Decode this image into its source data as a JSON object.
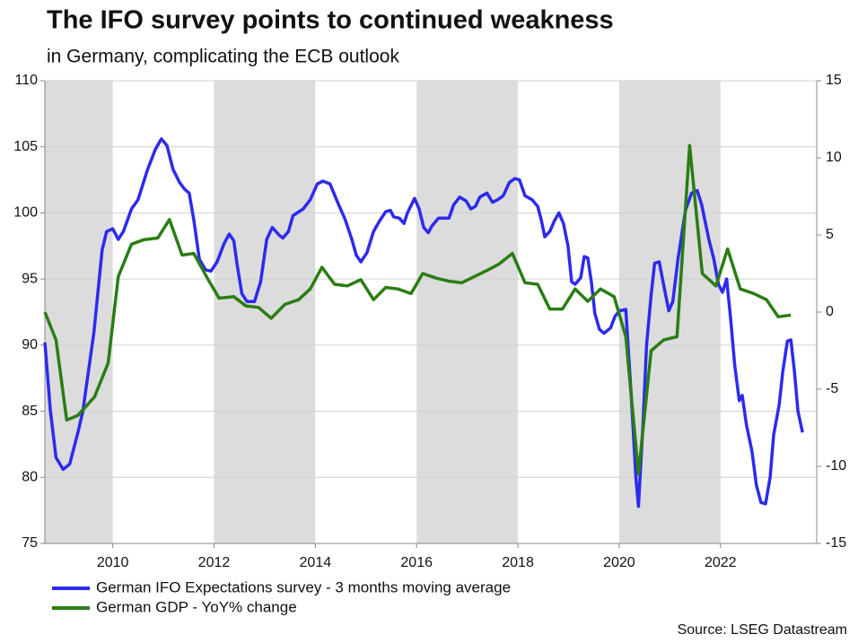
{
  "chart_data": {
    "type": "line",
    "title": "The IFO survey points to continued weakness",
    "subtitle": "in Germany, complicating the ECB outlook",
    "source": "Source: LSEG Datastream",
    "xlim": [
      2008.66,
      2023.9
    ],
    "xticks": [
      2010,
      2012,
      2014,
      2016,
      2018,
      2020,
      2022
    ],
    "ylim": [
      75,
      110
    ],
    "yticks": [
      75,
      80,
      85,
      90,
      95,
      100,
      105,
      110
    ],
    "y2lim": [
      -15,
      15
    ],
    "y2ticks": [
      -15,
      -10,
      -5,
      0,
      5,
      10,
      15
    ],
    "grid": true,
    "shaded_periods": [
      [
        2008.66,
        2010
      ],
      [
        2012,
        2014
      ],
      [
        2016,
        2018
      ],
      [
        2020,
        2022
      ]
    ],
    "shade_color": "#dcdcdc",
    "legend": "bottom-left",
    "series": [
      {
        "name": "German IFO Expectations survey - 3 months moving average",
        "color": "#2b2bef",
        "axis": "y",
        "x": [
          2008.66,
          2008.77,
          2008.88,
          2009.02,
          2009.15,
          2009.32,
          2009.41,
          2009.63,
          2009.79,
          2009.88,
          2010.0,
          2010.11,
          2010.21,
          2010.37,
          2010.5,
          2010.68,
          2010.84,
          2010.96,
          2011.07,
          2011.19,
          2011.32,
          2011.42,
          2011.51,
          2011.6,
          2011.71,
          2011.83,
          2011.94,
          2012.06,
          2012.2,
          2012.3,
          2012.39,
          2012.46,
          2012.55,
          2012.65,
          2012.8,
          2012.92,
          2013.04,
          2013.15,
          2013.29,
          2013.36,
          2013.47,
          2013.56,
          2013.76,
          2013.9,
          2014.04,
          2014.15,
          2014.29,
          2014.43,
          2014.59,
          2014.72,
          2014.81,
          2014.9,
          2015.02,
          2015.15,
          2015.27,
          2015.39,
          2015.48,
          2015.55,
          2015.66,
          2015.75,
          2015.82,
          2015.96,
          2016.05,
          2016.14,
          2016.23,
          2016.3,
          2016.43,
          2016.57,
          2016.64,
          2016.73,
          2016.85,
          2016.98,
          2017.07,
          2017.16,
          2017.25,
          2017.39,
          2017.5,
          2017.6,
          2017.71,
          2017.83,
          2017.94,
          2018.03,
          2018.14,
          2018.28,
          2018.39,
          2018.46,
          2018.53,
          2018.63,
          2018.72,
          2018.81,
          2018.9,
          2018.99,
          2019.06,
          2019.13,
          2019.24,
          2019.31,
          2019.38,
          2019.45,
          2019.52,
          2019.61,
          2019.7,
          2019.83,
          2019.92,
          2020.01,
          2020.13,
          2020.24,
          2020.33,
          2020.38,
          2020.47,
          2020.54,
          2020.63,
          2020.7,
          2020.79,
          2020.88,
          2020.98,
          2021.06,
          2021.16,
          2021.31,
          2021.43,
          2021.54,
          2021.63,
          2021.77,
          2021.87,
          2021.96,
          2022.04,
          2022.12,
          2022.2,
          2022.28,
          2022.37,
          2022.43,
          2022.51,
          2022.62,
          2022.71,
          2022.8,
          2022.89,
          2022.98,
          2023.05,
          2023.16,
          2023.23,
          2023.32,
          2023.39,
          2023.46,
          2023.53,
          2023.62
        ],
        "values": [
          90.2,
          85,
          81.5,
          80.6,
          81,
          83.5,
          85,
          91,
          97.2,
          98.6,
          98.8,
          98,
          98.6,
          100.3,
          101,
          103.2,
          104.8,
          105.6,
          105.1,
          103.3,
          102.3,
          101.8,
          101.5,
          99.5,
          96.5,
          95.7,
          95.6,
          96.3,
          97.7,
          98.4,
          97.9,
          96,
          93.9,
          93.3,
          93.3,
          94.8,
          98,
          98.9,
          98.3,
          98.1,
          98.6,
          99.8,
          100.3,
          101,
          102.2,
          102.4,
          102.2,
          100.9,
          99.5,
          98,
          96.8,
          96.3,
          97,
          98.6,
          99.4,
          100.1,
          100.2,
          99.7,
          99.6,
          99.2,
          100,
          101.1,
          100.3,
          98.9,
          98.5,
          99,
          99.6,
          99.6,
          99.6,
          100.6,
          101.2,
          100.9,
          100.3,
          100.5,
          101.2,
          101.5,
          100.8,
          101,
          101.3,
          102.3,
          102.6,
          102.5,
          101.3,
          101,
          100.5,
          99.5,
          98.2,
          98.6,
          99.4,
          100,
          99.2,
          97.5,
          94.8,
          94.6,
          95.1,
          96.7,
          96.6,
          94.8,
          92.4,
          91.2,
          90.9,
          91.3,
          92.2,
          92.6,
          92.7,
          86,
          80,
          77.8,
          84,
          90,
          93.8,
          96.2,
          96.3,
          94.5,
          92.6,
          93.3,
          96.5,
          100.2,
          101.5,
          101.7,
          100.6,
          98,
          96.5,
          94.6,
          94,
          95,
          92,
          88.5,
          85.8,
          86.2,
          84,
          82,
          79.4,
          78.1,
          78,
          80,
          83.2,
          85.5,
          88,
          90.3,
          90.4,
          88,
          85,
          83.4
        ]
      },
      {
        "name": "German GDP - YoY% change",
        "color": "#2a7d14",
        "axis": "y2",
        "x": [
          2008.66,
          2008.88,
          2009.09,
          2009.31,
          2009.64,
          2009.91,
          2010.11,
          2010.37,
          2010.62,
          2010.89,
          2011.12,
          2011.37,
          2011.6,
          2011.87,
          2012.1,
          2012.39,
          2012.63,
          2012.88,
          2013.13,
          2013.4,
          2013.67,
          2013.9,
          2014.13,
          2014.38,
          2014.63,
          2014.9,
          2015.15,
          2015.39,
          2015.63,
          2015.89,
          2016.12,
          2016.39,
          2016.64,
          2016.89,
          2017.14,
          2017.39,
          2017.62,
          2017.89,
          2018.14,
          2018.39,
          2018.63,
          2018.88,
          2019.13,
          2019.38,
          2019.63,
          2019.9,
          2020.13,
          2020.38,
          2020.63,
          2020.88,
          2021.14,
          2021.39,
          2021.64,
          2021.91,
          2022.14,
          2022.39,
          2022.66,
          2022.91,
          2023.14,
          2023.39
        ],
        "values": [
          0,
          -1.8,
          -7,
          -6.7,
          -5.5,
          -3.3,
          2.3,
          4.4,
          4.7,
          4.8,
          6,
          3.7,
          3.8,
          2.2,
          0.9,
          1,
          0.4,
          0.3,
          -0.4,
          0.5,
          0.8,
          1.5,
          2.9,
          1.8,
          1.7,
          2.1,
          0.8,
          1.6,
          1.5,
          1.2,
          2.5,
          2.2,
          2,
          1.9,
          2.3,
          2.7,
          3.1,
          3.8,
          1.9,
          1.8,
          0.2,
          0.2,
          1.5,
          0.7,
          1.5,
          1,
          -1.6,
          -10.5,
          -2.5,
          -1.8,
          -1.6,
          10.8,
          2.5,
          1.7,
          4.1,
          1.5,
          1.2,
          0.8,
          -0.3,
          -0.2
        ]
      }
    ]
  }
}
